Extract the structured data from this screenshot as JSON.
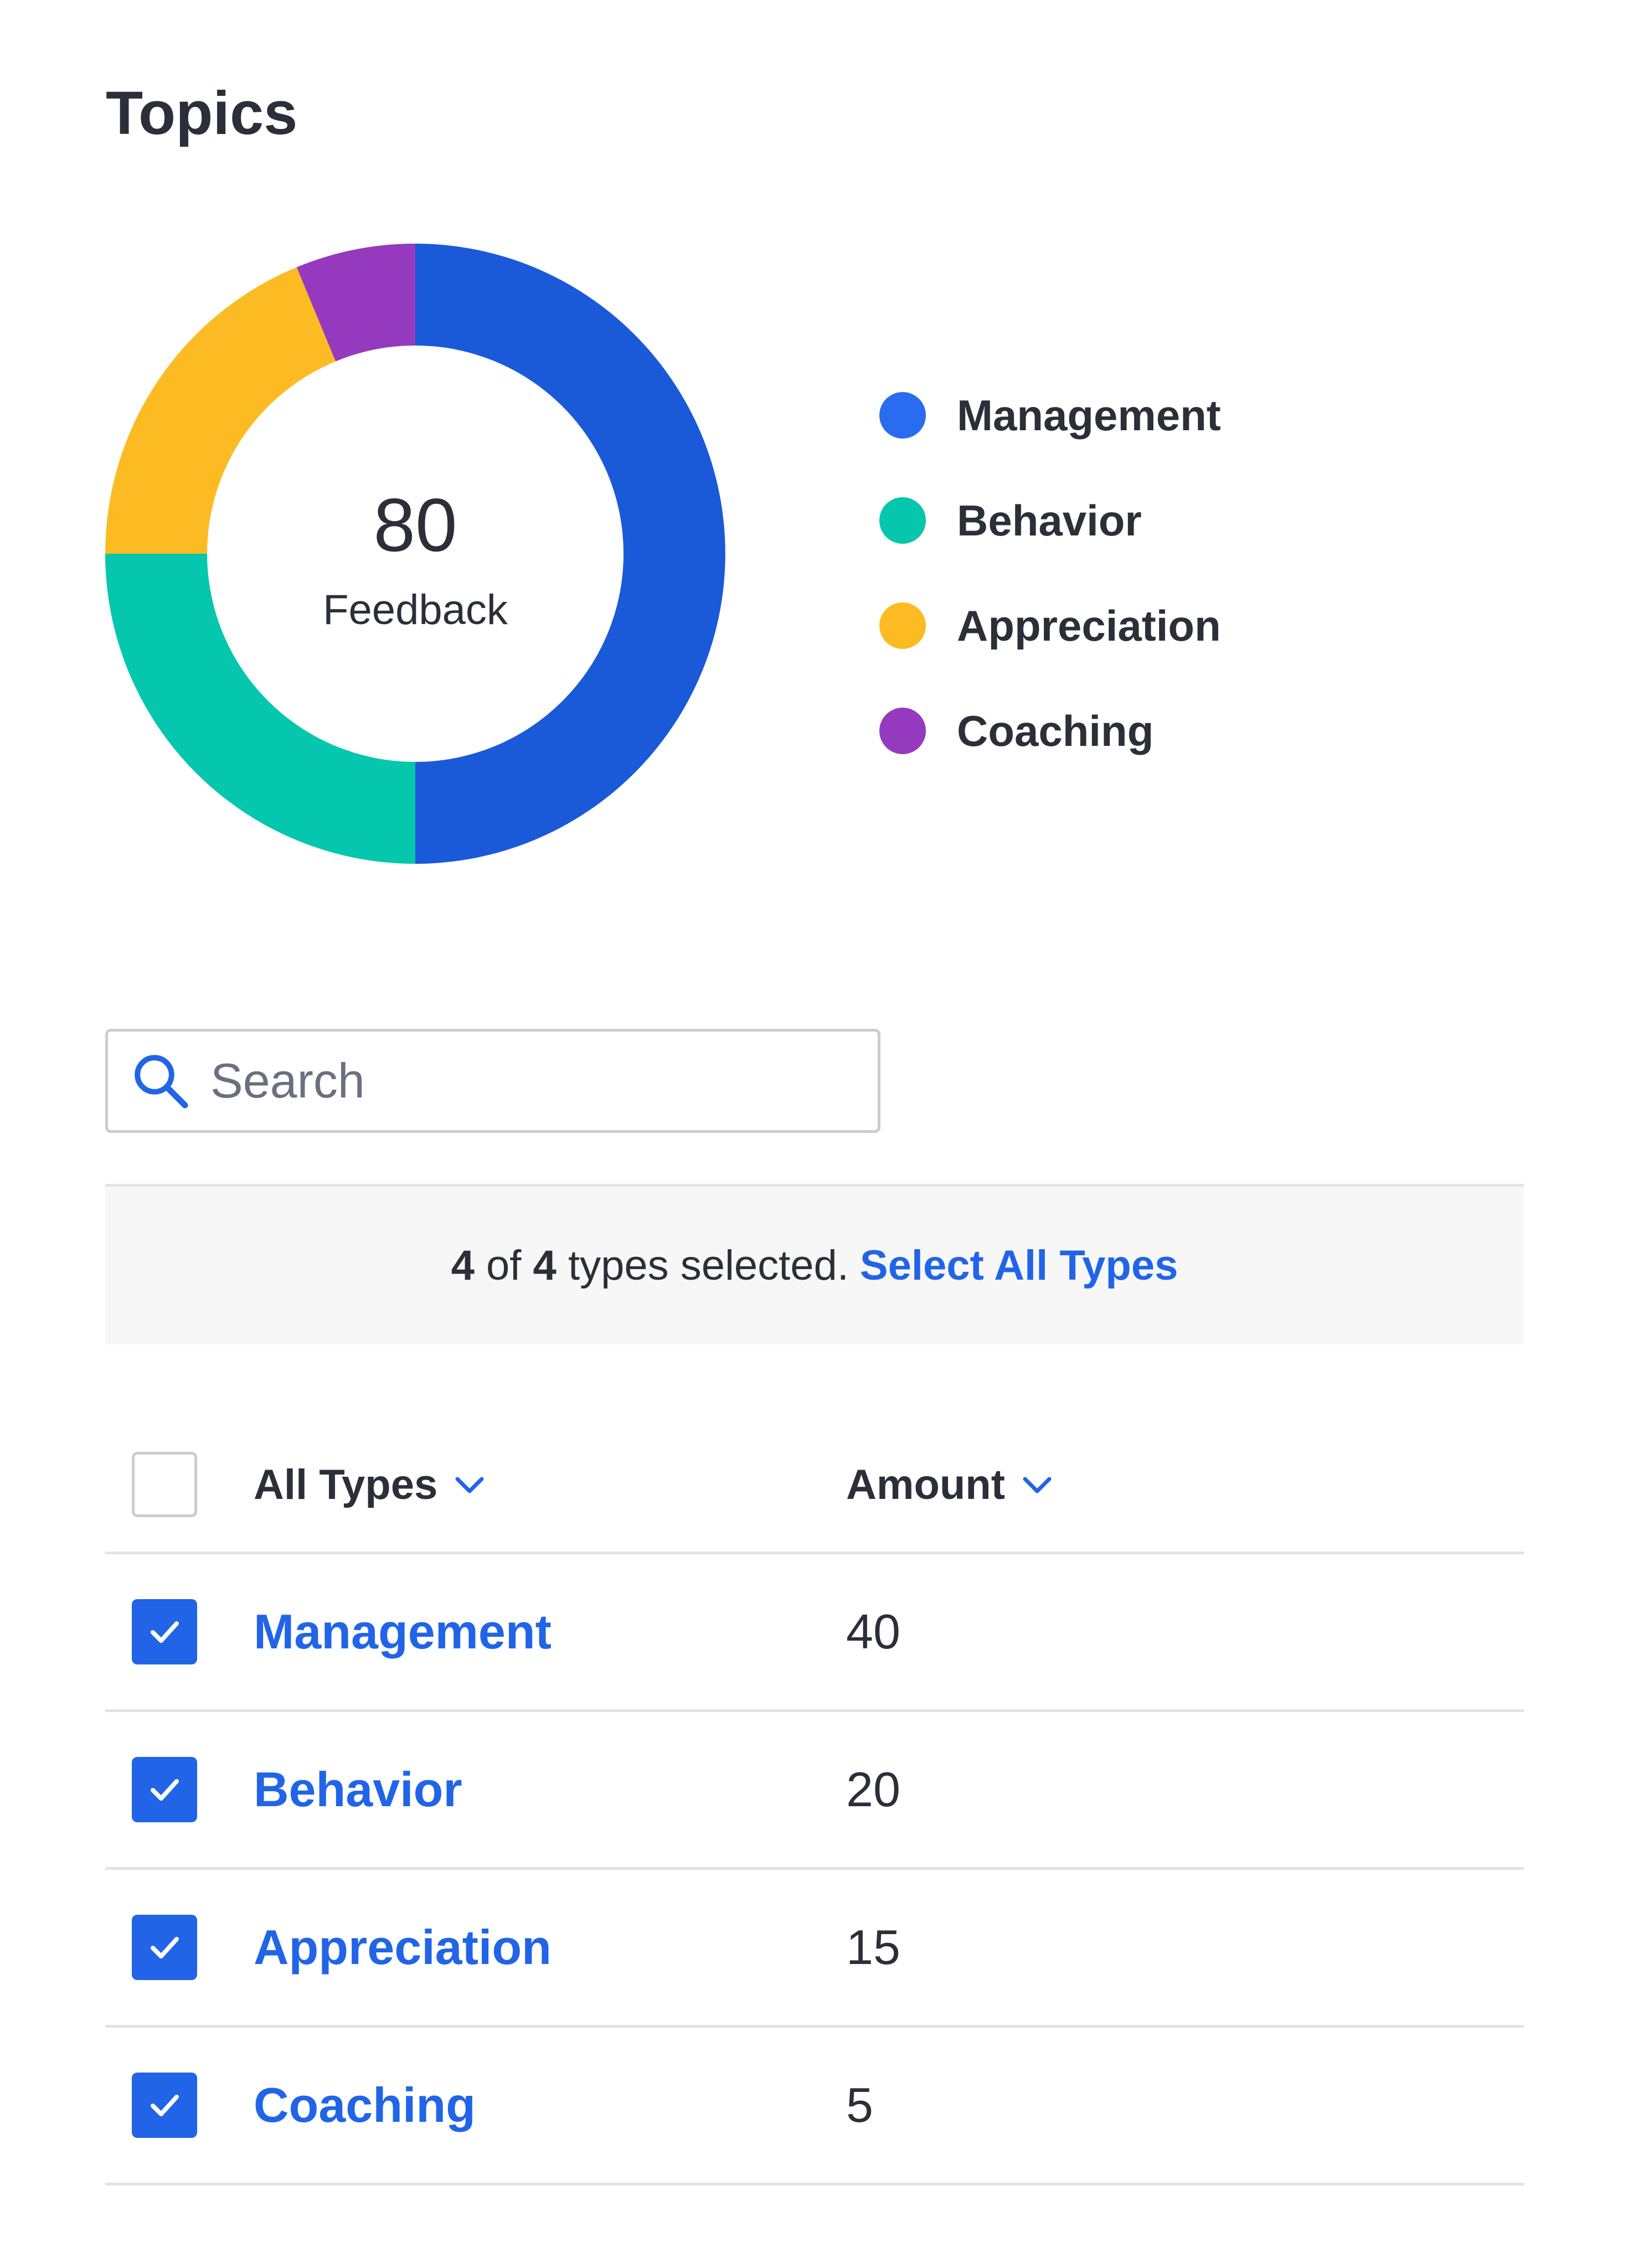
{
  "page": {
    "title": "Topics"
  },
  "chart_data": {
    "type": "pie",
    "donut": true,
    "center_value": "80",
    "center_label": "Feedback",
    "categories": [
      "Management",
      "Behavior",
      "Appreciation",
      "Coaching"
    ],
    "values": [
      40,
      20,
      15,
      5
    ],
    "colors": [
      "#1a5ad9",
      "#05c7ad",
      "#fdbb23",
      "#9539bf"
    ]
  },
  "legend": {
    "items": [
      {
        "label": "Management",
        "color": "#2a6cf0"
      },
      {
        "label": "Behavior",
        "color": "#05c7ad"
      },
      {
        "label": "Appreciation",
        "color": "#fdbb23"
      },
      {
        "label": "Coaching",
        "color": "#9539bf"
      }
    ]
  },
  "search": {
    "placeholder": "Search",
    "value": "",
    "icon": "search-icon"
  },
  "selection": {
    "selected": "4",
    "of_text": "of",
    "total": "4",
    "suffix": "types selected.",
    "select_all_label": "Select All Types"
  },
  "table": {
    "header": {
      "type_label": "All Types",
      "amount_label": "Amount",
      "chevron_icon": "chevron-down-icon"
    },
    "rows": [
      {
        "type": "Management",
        "amount": "40",
        "checked": true
      },
      {
        "type": "Behavior",
        "amount": "20",
        "checked": true
      },
      {
        "type": "Appreciation",
        "amount": "15",
        "checked": true
      },
      {
        "type": "Coaching",
        "amount": "5",
        "checked": true
      }
    ]
  },
  "colors": {
    "accent": "#2164e8",
    "text": "#2b2f38",
    "border": "#c9ccd1",
    "bar_bg": "#f7f7f7"
  }
}
